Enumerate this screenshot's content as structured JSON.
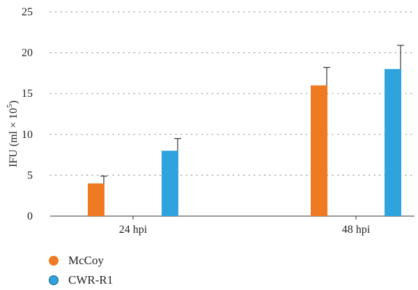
{
  "chart_data": {
    "type": "bar",
    "categories": [
      "24 hpi",
      "48 hpi"
    ],
    "series": [
      {
        "name": "McCoy",
        "values": [
          4,
          16
        ],
        "errors": [
          0.9,
          2.2
        ],
        "color": "#f07a22"
      },
      {
        "name": "CWR-R1",
        "values": [
          8,
          18
        ],
        "errors": [
          1.5,
          2.9
        ],
        "color": "#2ea3dd"
      }
    ],
    "ylabel_html": "IFU (ml × 10<tspan baseline-shift=\"super\" font-size=\"11\">5</tspan>)",
    "ylabel_text": "IFU (ml × 10",
    "ylabel_sup": "5",
    "ylabel_close": ")",
    "ylim": [
      0,
      25
    ],
    "yticks": [
      0,
      5,
      10,
      15,
      20,
      25
    ],
    "grid": "dotted-horizontal",
    "legend_position": "bottom-left"
  }
}
